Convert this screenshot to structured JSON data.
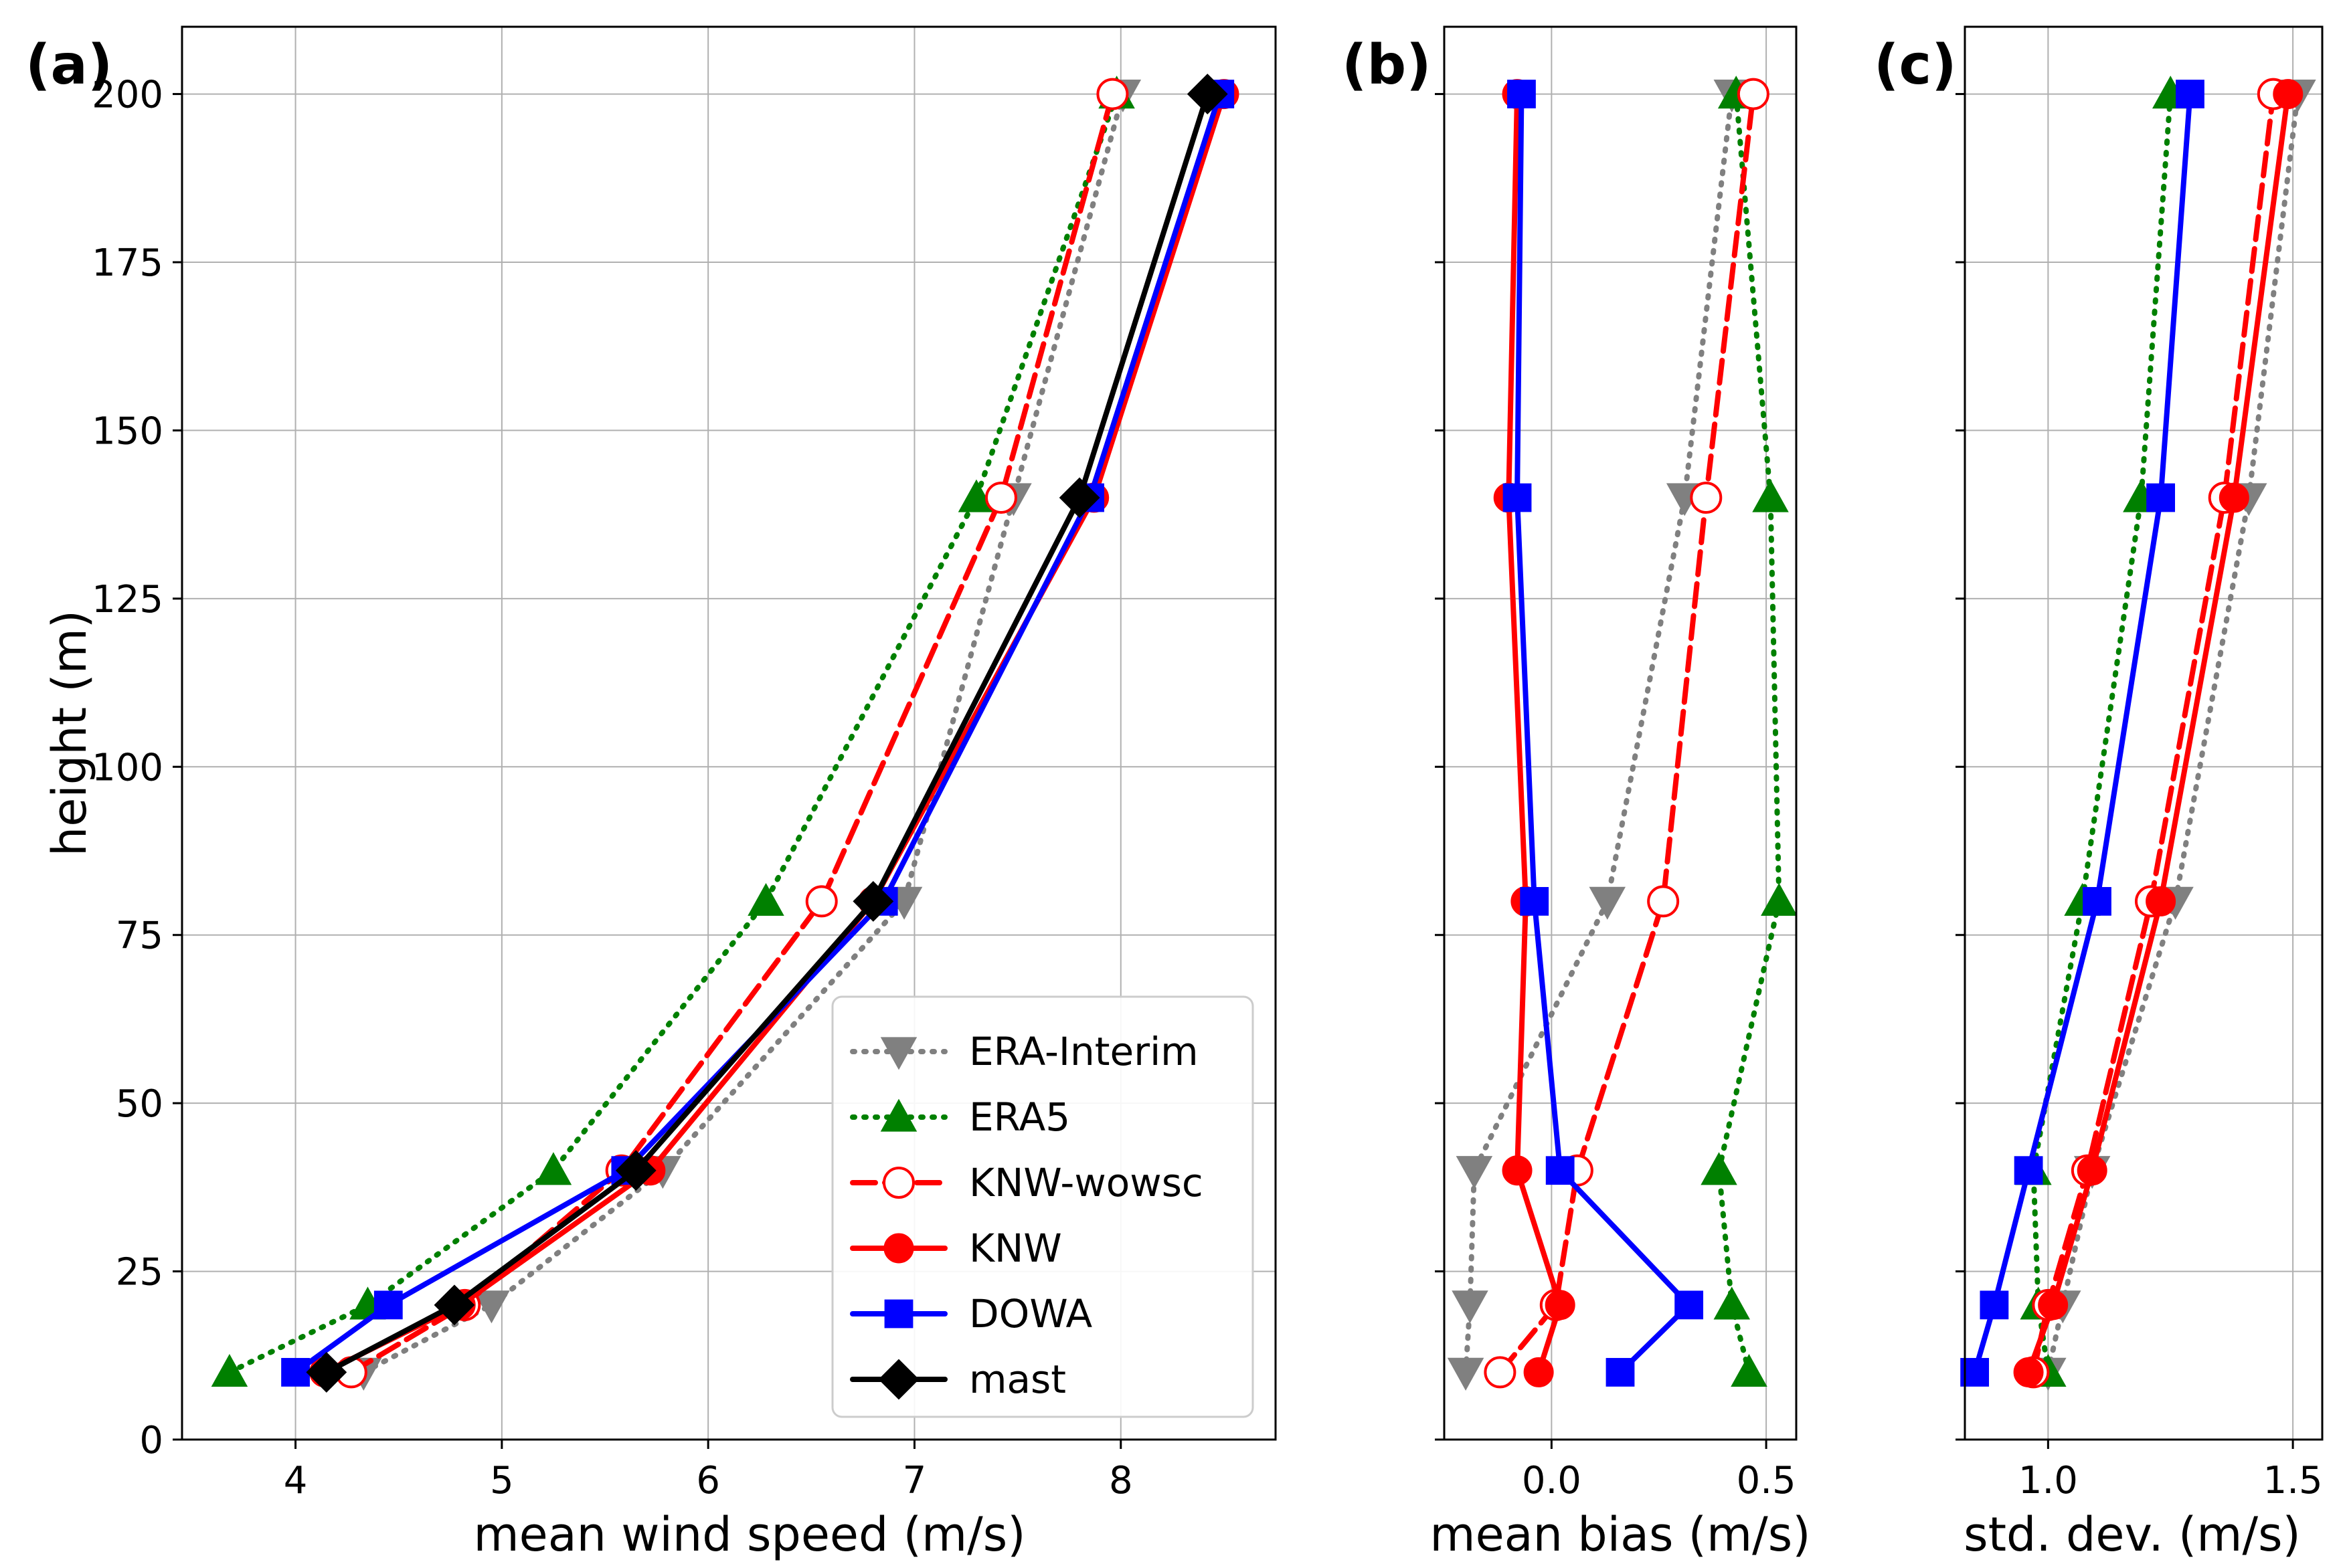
{
  "chart_data": [
    {
      "panel_label": "(a)",
      "type": "line",
      "xlabel": "mean wind speed (m/s)",
      "ylabel": "height (m)",
      "xlim": [
        3.45,
        8.75
      ],
      "ylim": [
        0,
        210
      ],
      "xticks": [
        4,
        5,
        6,
        7,
        8
      ],
      "xtick_labels": [
        "4",
        "5",
        "6",
        "7",
        "8"
      ],
      "yticks": [
        0,
        25,
        50,
        75,
        100,
        125,
        150,
        175,
        200
      ],
      "ytick_labels": [
        "0",
        "25",
        "50",
        "75",
        "100",
        "125",
        "150",
        "175",
        "200"
      ],
      "grid": true,
      "legend": "lower-right",
      "series": [
        {
          "name": "ERA-Interim",
          "key": "erai",
          "x": [
            4.33,
            4.95,
            5.78,
            6.95,
            7.48,
            8.01
          ],
          "y": [
            10,
            20,
            40,
            80,
            140,
            200
          ]
        },
        {
          "name": "ERA5",
          "key": "era5",
          "x": [
            3.68,
            4.35,
            5.25,
            6.28,
            7.3,
            7.98
          ],
          "y": [
            10,
            20,
            40,
            80,
            140,
            200
          ]
        },
        {
          "name": "KNW-wowsc",
          "key": "knwwo",
          "x": [
            4.27,
            4.82,
            5.58,
            6.55,
            7.42,
            7.96
          ],
          "y": [
            10,
            20,
            40,
            80,
            140,
            200
          ]
        },
        {
          "name": "KNW",
          "key": "knw",
          "x": [
            4.14,
            4.8,
            5.72,
            6.8,
            7.87,
            8.5
          ],
          "y": [
            10,
            20,
            40,
            80,
            140,
            200
          ]
        },
        {
          "name": "DOWA",
          "key": "dowa",
          "x": [
            4.0,
            4.45,
            5.6,
            6.85,
            7.85,
            8.48
          ],
          "y": [
            10,
            20,
            40,
            80,
            140,
            200
          ]
        },
        {
          "name": "mast",
          "key": "mast",
          "x": [
            4.15,
            4.77,
            5.65,
            6.8,
            7.8,
            8.42
          ],
          "y": [
            10,
            20,
            40,
            80,
            140,
            200
          ]
        }
      ]
    },
    {
      "panel_label": "(b)",
      "type": "line",
      "xlabel": "mean bias (m/s)",
      "ylabel": "",
      "xlim": [
        -0.25,
        0.57
      ],
      "ylim": [
        0,
        210
      ],
      "xticks": [
        0.0,
        0.5
      ],
      "xtick_labels": [
        "0.0",
        "0.5"
      ],
      "yticks": [
        0,
        25,
        50,
        75,
        100,
        125,
        150,
        175,
        200
      ],
      "grid": true,
      "series": [
        {
          "name": "ERA-Interim",
          "key": "erai",
          "x": [
            -0.2,
            -0.19,
            -0.18,
            0.13,
            0.31,
            0.42
          ],
          "y": [
            10,
            20,
            40,
            80,
            140,
            200
          ]
        },
        {
          "name": "ERA5",
          "key": "era5",
          "x": [
            0.46,
            0.42,
            0.39,
            0.53,
            0.51,
            0.43
          ],
          "y": [
            10,
            20,
            40,
            80,
            140,
            200
          ]
        },
        {
          "name": "KNW-wowsc",
          "key": "knwwo",
          "x": [
            -0.12,
            0.01,
            0.06,
            0.26,
            0.36,
            0.47
          ],
          "y": [
            10,
            20,
            40,
            80,
            140,
            200
          ]
        },
        {
          "name": "KNW",
          "key": "knw",
          "x": [
            -0.03,
            0.02,
            -0.08,
            -0.06,
            -0.1,
            -0.08
          ],
          "y": [
            10,
            20,
            40,
            80,
            140,
            200
          ]
        },
        {
          "name": "DOWA",
          "key": "dowa",
          "x": [
            0.16,
            0.32,
            0.02,
            -0.04,
            -0.08,
            -0.07
          ],
          "y": [
            10,
            20,
            40,
            80,
            140,
            200
          ]
        }
      ]
    },
    {
      "panel_label": "(c)",
      "type": "line",
      "xlabel": "std. dev. (m/s)",
      "ylabel": "",
      "xlim": [
        0.83,
        1.56
      ],
      "ylim": [
        0,
        210
      ],
      "xticks": [
        1.0,
        1.5
      ],
      "xtick_labels": [
        "1.0",
        "1.5"
      ],
      "yticks": [
        0,
        25,
        50,
        75,
        100,
        125,
        150,
        175,
        200
      ],
      "grid": true,
      "series": [
        {
          "name": "ERA-Interim",
          "key": "erai",
          "x": [
            1.0,
            1.03,
            1.09,
            1.26,
            1.41,
            1.51
          ],
          "y": [
            10,
            20,
            40,
            80,
            140,
            200
          ]
        },
        {
          "name": "ERA5",
          "key": "era5",
          "x": [
            1.0,
            0.98,
            0.97,
            1.07,
            1.19,
            1.25
          ],
          "y": [
            10,
            20,
            40,
            80,
            140,
            200
          ]
        },
        {
          "name": "KNW-wowsc",
          "key": "knwwo",
          "x": [
            0.97,
            1.0,
            1.08,
            1.21,
            1.36,
            1.46
          ],
          "y": [
            10,
            20,
            40,
            80,
            140,
            200
          ]
        },
        {
          "name": "KNW",
          "key": "knw",
          "x": [
            0.96,
            1.01,
            1.09,
            1.23,
            1.38,
            1.49
          ],
          "y": [
            10,
            20,
            40,
            80,
            140,
            200
          ]
        },
        {
          "name": "DOWA",
          "key": "dowa",
          "x": [
            0.85,
            0.89,
            0.96,
            1.1,
            1.23,
            1.29
          ],
          "y": [
            10,
            20,
            40,
            80,
            140,
            200
          ]
        }
      ]
    }
  ],
  "styles": {
    "erai": {
      "color": "#808080",
      "marker": "triangle-down",
      "dash": "dotted",
      "hollow": false
    },
    "era5": {
      "color": "#008000",
      "marker": "triangle-up",
      "dash": "dotted",
      "hollow": false
    },
    "knwwo": {
      "color": "#ff0000",
      "marker": "circle",
      "dash": "dashed",
      "hollow": true
    },
    "knw": {
      "color": "#ff0000",
      "marker": "circle",
      "dash": "solid",
      "hollow": false
    },
    "dowa": {
      "color": "#0000ff",
      "marker": "square",
      "dash": "solid",
      "hollow": false
    },
    "mast": {
      "color": "#000000",
      "marker": "diamond",
      "dash": "solid",
      "hollow": false
    }
  }
}
